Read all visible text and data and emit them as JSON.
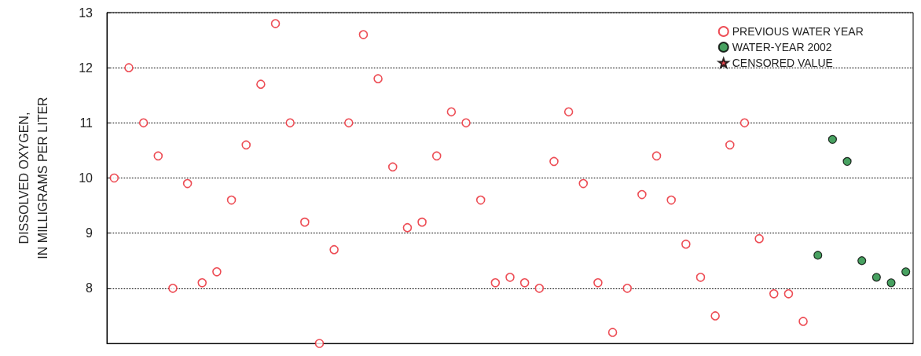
{
  "chart_data": {
    "type": "scatter",
    "ylabel": "DISSOLVED OXYGEN,\nIN MILLIGRAMS PER LITER",
    "categories": [
      null,
      null,
      null,
      null,
      null,
      null,
      null,
      null,
      null,
      null,
      null,
      null,
      null,
      null,
      null,
      null,
      null,
      null,
      null,
      null,
      null,
      null,
      null,
      null,
      null,
      null,
      null,
      null,
      null,
      null,
      null,
      null,
      null,
      null,
      null,
      null,
      null,
      null,
      null,
      null,
      null,
      null,
      null,
      null,
      null,
      null,
      null,
      null,
      null,
      null,
      null,
      null,
      null,
      null,
      null
    ],
    "ylim": [
      7,
      13
    ],
    "yticks": [
      {
        "value": 7,
        "label": null
      },
      8,
      9,
      10,
      11,
      12,
      13
    ],
    "grid": "y",
    "legend": "top right",
    "marker": "circle",
    "series": [
      {
        "name": "PREVIOUS WATER YEAR",
        "color": "#e8212a",
        "values": [
          10.0,
          12.0,
          11.0,
          10.4,
          8.0,
          9.9,
          8.1,
          8.3,
          9.6,
          10.6,
          11.7,
          12.8,
          11.0,
          9.2,
          7.0,
          8.7,
          11.0,
          12.6,
          11.8,
          10.2,
          9.1,
          9.2,
          10.4,
          11.2,
          11.0,
          9.6,
          8.1,
          8.2,
          8.1,
          8.0,
          10.3,
          11.2,
          9.9,
          8.1,
          7.2,
          8.0,
          9.7,
          10.4,
          9.6,
          8.8,
          8.2,
          7.5,
          10.6,
          11.0,
          8.9,
          7.9,
          7.9,
          7.4,
          null,
          null,
          null,
          null,
          null,
          null,
          null
        ]
      },
      {
        "name": "WATER-YEAR 2002",
        "color": "#1a8a3a",
        "values": [
          null,
          null,
          null,
          null,
          null,
          null,
          null,
          null,
          null,
          null,
          null,
          null,
          null,
          null,
          null,
          null,
          null,
          null,
          null,
          null,
          null,
          null,
          null,
          null,
          null,
          null,
          null,
          null,
          null,
          null,
          null,
          null,
          null,
          null,
          null,
          null,
          null,
          null,
          null,
          null,
          null,
          null,
          null,
          null,
          null,
          null,
          null,
          null,
          8.6,
          10.7,
          10.3,
          8.5,
          8.2,
          8.1,
          8.3
        ]
      },
      {
        "name": "CENSORED VALUE",
        "color": "#e8212a",
        "marker": "star",
        "values": [
          null,
          null,
          null,
          null,
          null,
          null,
          null,
          null,
          null,
          null,
          null,
          null,
          null,
          null,
          null,
          null,
          null,
          null,
          null,
          null,
          null,
          null,
          null,
          null,
          null,
          null,
          null,
          null,
          null,
          null,
          null,
          null,
          null,
          null,
          null,
          null,
          null,
          null,
          null,
          null,
          null,
          null,
          null,
          null,
          null,
          null,
          null,
          null,
          null,
          null,
          null,
          null,
          null,
          null,
          null
        ]
      }
    ]
  }
}
